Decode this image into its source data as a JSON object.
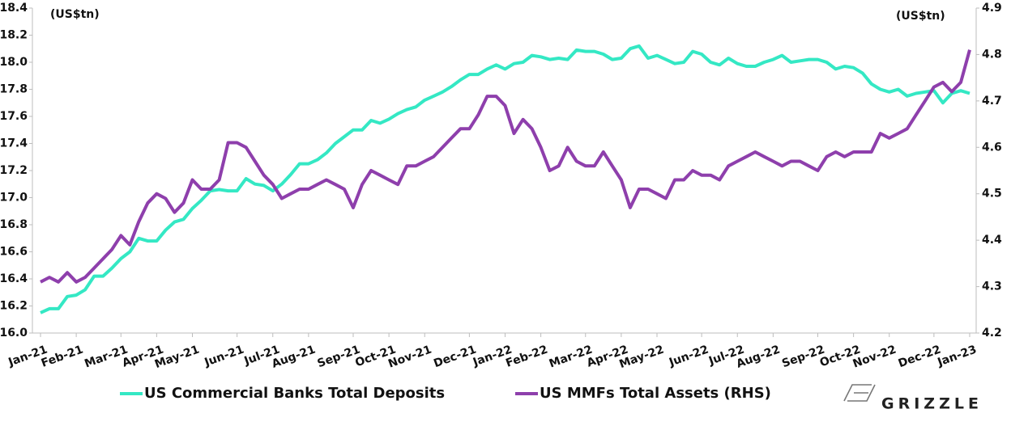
{
  "chart_data": {
    "type": "line",
    "annotations": [
      "(US$tn)",
      "(US$tn)"
    ],
    "categories": [
      "Jan-21",
      null,
      null,
      null,
      "Feb-21",
      null,
      null,
      null,
      null,
      "Mar-21",
      null,
      null,
      null,
      "Apr-21",
      null,
      null,
      null,
      "May-21",
      null,
      null,
      null,
      null,
      "Jun-21",
      null,
      null,
      null,
      "Jul-21",
      null,
      null,
      null,
      "Aug-21",
      null,
      null,
      null,
      null,
      "Sep-21",
      null,
      null,
      null,
      "Oct-21",
      null,
      null,
      null,
      "Nov-21",
      null,
      null,
      null,
      null,
      "Dec-21",
      null,
      null,
      null,
      "Jan-22",
      null,
      null,
      null,
      "Feb-22",
      null,
      null,
      null,
      null,
      "Mar-22",
      null,
      null,
      null,
      "Apr-22",
      null,
      null,
      null,
      "May-22",
      null,
      null,
      null,
      null,
      "Jun-22",
      null,
      null,
      null,
      "Jul-22",
      null,
      null,
      null,
      "Aug-22",
      null,
      null,
      null,
      null,
      "Sep-22",
      null,
      null,
      null,
      "Oct-22",
      null,
      null,
      null,
      "Nov-22",
      null,
      null,
      null,
      null,
      "Dec-22",
      null,
      null,
      null,
      "Jan-23"
    ],
    "series": [
      {
        "name": "US Commercial Banks Total Deposits",
        "color": "#34e8c4",
        "values": [
          16.15,
          16.18,
          16.18,
          16.27,
          16.28,
          16.32,
          16.42,
          16.42,
          16.48,
          16.55,
          16.6,
          16.7,
          16.68,
          16.68,
          16.76,
          16.82,
          16.84,
          16.92,
          16.98,
          17.05,
          17.06,
          17.05,
          17.05,
          17.14,
          17.1,
          17.09,
          17.05,
          17.1,
          17.17,
          17.25,
          17.25,
          17.28,
          17.33,
          17.4,
          17.45,
          17.5,
          17.5,
          17.57,
          17.55,
          17.58,
          17.62,
          17.65,
          17.67,
          17.72,
          17.75,
          17.78,
          17.82,
          17.87,
          17.91,
          17.91,
          17.95,
          17.98,
          17.95,
          17.99,
          18.0,
          18.05,
          18.04,
          18.02,
          18.03,
          18.02,
          18.09,
          18.08,
          18.08,
          18.06,
          18.02,
          18.03,
          18.1,
          18.12,
          18.03,
          18.05,
          18.02,
          17.99,
          18.0,
          18.08,
          18.06,
          18.0,
          17.98,
          18.03,
          17.99,
          17.97,
          17.97,
          18.0,
          18.02,
          18.05,
          18.0,
          18.01,
          18.02,
          18.02,
          18.0,
          17.95,
          17.97,
          17.96,
          17.92,
          17.84,
          17.8,
          17.78,
          17.8,
          17.75,
          17.77,
          17.78,
          17.79,
          17.7,
          17.77,
          17.79,
          17.77
        ]
      },
      {
        "name": "US MMFs Total Assets (RHS)",
        "color": "#8e3fac",
        "axis": "y2",
        "values": [
          4.31,
          4.32,
          4.31,
          4.33,
          4.31,
          4.32,
          4.34,
          4.36,
          4.38,
          4.41,
          4.39,
          4.44,
          4.48,
          4.5,
          4.49,
          4.46,
          4.48,
          4.53,
          4.51,
          4.51,
          4.53,
          4.61,
          4.61,
          4.6,
          4.57,
          4.54,
          4.52,
          4.49,
          4.5,
          4.51,
          4.51,
          4.52,
          4.53,
          4.52,
          4.51,
          4.47,
          4.52,
          4.55,
          4.54,
          4.53,
          4.52,
          4.56,
          4.56,
          4.57,
          4.58,
          4.6,
          4.62,
          4.64,
          4.64,
          4.67,
          4.71,
          4.71,
          4.69,
          4.63,
          4.66,
          4.64,
          4.6,
          4.55,
          4.56,
          4.6,
          4.57,
          4.56,
          4.56,
          4.59,
          4.56,
          4.53,
          4.47,
          4.51,
          4.51,
          4.5,
          4.49,
          4.53,
          4.53,
          4.55,
          4.54,
          4.54,
          4.53,
          4.56,
          4.57,
          4.58,
          4.59,
          4.58,
          4.57,
          4.56,
          4.57,
          4.57,
          4.56,
          4.55,
          4.58,
          4.59,
          4.58,
          4.59,
          4.59,
          4.59,
          4.63,
          4.62,
          4.63,
          4.64,
          4.67,
          4.7,
          4.73,
          4.74,
          4.72,
          4.74,
          4.81
        ]
      }
    ],
    "ylim": [
      16.0,
      18.4
    ],
    "yticks": [
      {
        "value": 16,
        "label": "16.0"
      },
      16.2,
      16.4,
      16.6,
      16.8,
      {
        "value": 17,
        "label": "17.0"
      },
      17.2,
      17.4,
      17.6,
      17.8,
      {
        "value": 18,
        "label": "18.0"
      },
      18.2,
      18.4
    ],
    "y2lim": [
      4.2,
      4.9
    ],
    "y2ticks": [
      4.2,
      4.3,
      4.4,
      4.5,
      4.6,
      4.7,
      4.8,
      4.9
    ],
    "grid": false,
    "legend": "bottom"
  },
  "logo": "GRIZZLE"
}
